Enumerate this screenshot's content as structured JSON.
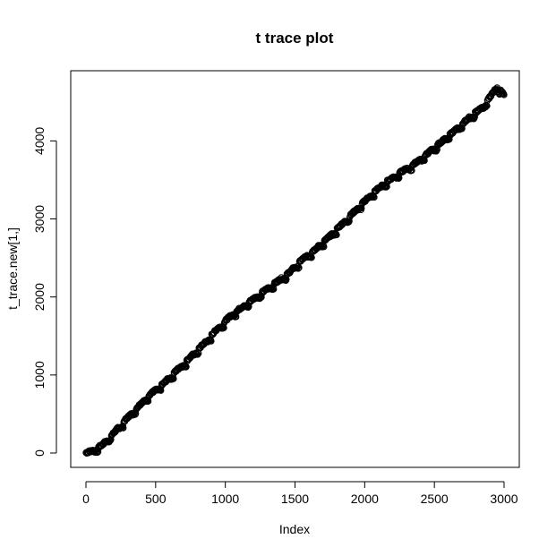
{
  "chart_data": {
    "type": "scatter",
    "title": "t trace plot",
    "xlabel": "Index",
    "ylabel": "t_trace.new[1,]",
    "xlim": [
      0,
      3000
    ],
    "ylim": [
      0,
      4750
    ],
    "x_ticks": [
      "0",
      "500",
      "1000",
      "1500",
      "2000",
      "2500",
      "3000"
    ],
    "y_ticks": [
      "0",
      "1000",
      "2000",
      "3000",
      "4000"
    ],
    "grid": false,
    "legend": "none",
    "marker": "open-circle",
    "series": [
      {
        "points": [
          [
            0,
            5
          ],
          [
            60,
            40
          ],
          [
            120,
            110
          ],
          [
            200,
            260
          ],
          [
            280,
            420
          ],
          [
            360,
            570
          ],
          [
            450,
            740
          ],
          [
            550,
            880
          ],
          [
            650,
            1060
          ],
          [
            750,
            1230
          ],
          [
            850,
            1410
          ],
          [
            950,
            1610
          ],
          [
            1050,
            1780
          ],
          [
            1150,
            1910
          ],
          [
            1250,
            2040
          ],
          [
            1350,
            2170
          ],
          [
            1450,
            2300
          ],
          [
            1550,
            2480
          ],
          [
            1650,
            2620
          ],
          [
            1750,
            2780
          ],
          [
            1850,
            2960
          ],
          [
            1950,
            3140
          ],
          [
            2050,
            3320
          ],
          [
            2150,
            3470
          ],
          [
            2250,
            3590
          ],
          [
            2350,
            3700
          ],
          [
            2450,
            3840
          ],
          [
            2550,
            3990
          ],
          [
            2650,
            4140
          ],
          [
            2750,
            4300
          ],
          [
            2850,
            4440
          ],
          [
            2950,
            4700
          ],
          [
            3000,
            4590
          ]
        ]
      }
    ]
  }
}
